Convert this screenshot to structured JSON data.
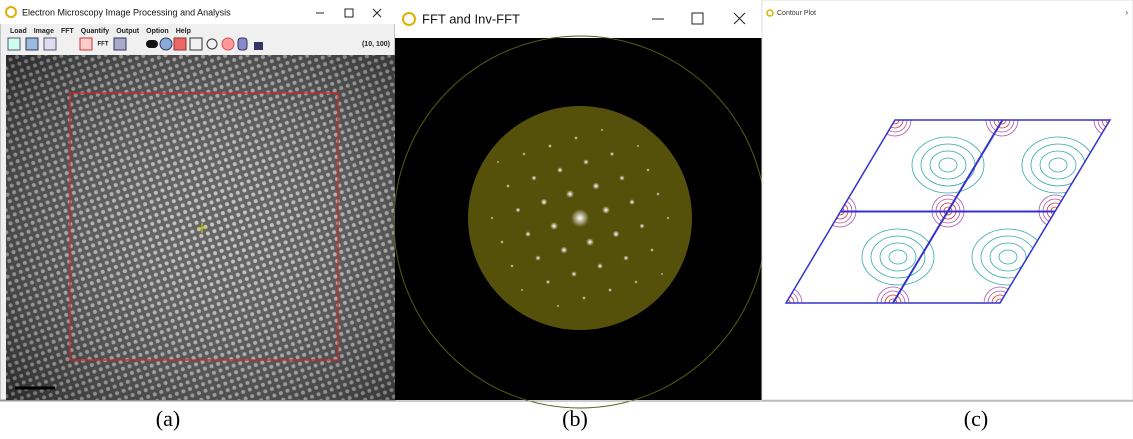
{
  "windows": [
    {
      "title": "Electron Microscopy Image Processing and Analysis",
      "menu": [
        "Load",
        "Image",
        "FFT",
        "Quantify",
        "Output",
        "Option",
        "Help"
      ],
      "toolbar_label": "FFT",
      "status": "(10, 100)"
    },
    {
      "title": "FFT and Inv-FFT"
    },
    {
      "title": "Contour Plot"
    }
  ],
  "captions": [
    "(a)",
    "(b)",
    "(c)"
  ]
}
